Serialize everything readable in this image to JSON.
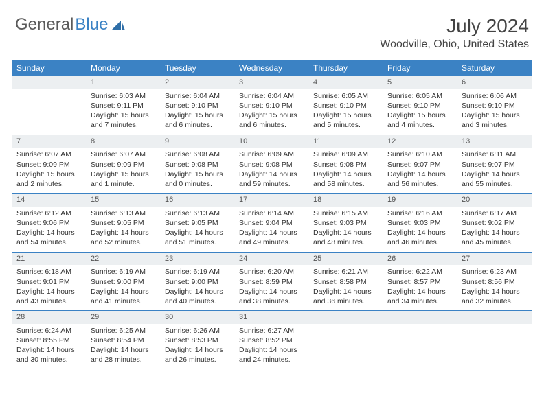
{
  "brand": {
    "general": "General",
    "blue": "Blue"
  },
  "header": {
    "month_year": "July 2024",
    "location": "Woodville, Ohio, United States"
  },
  "day_headers": [
    "Sunday",
    "Monday",
    "Tuesday",
    "Wednesday",
    "Thursday",
    "Friday",
    "Saturday"
  ],
  "colors": {
    "accent": "#3b82c4",
    "daynum_bg": "#eceff1"
  },
  "weeks": [
    [
      null,
      {
        "n": "1",
        "sr": "Sunrise: 6:03 AM",
        "ss": "Sunset: 9:11 PM",
        "d1": "Daylight: 15 hours",
        "d2": "and 7 minutes."
      },
      {
        "n": "2",
        "sr": "Sunrise: 6:04 AM",
        "ss": "Sunset: 9:10 PM",
        "d1": "Daylight: 15 hours",
        "d2": "and 6 minutes."
      },
      {
        "n": "3",
        "sr": "Sunrise: 6:04 AM",
        "ss": "Sunset: 9:10 PM",
        "d1": "Daylight: 15 hours",
        "d2": "and 6 minutes."
      },
      {
        "n": "4",
        "sr": "Sunrise: 6:05 AM",
        "ss": "Sunset: 9:10 PM",
        "d1": "Daylight: 15 hours",
        "d2": "and 5 minutes."
      },
      {
        "n": "5",
        "sr": "Sunrise: 6:05 AM",
        "ss": "Sunset: 9:10 PM",
        "d1": "Daylight: 15 hours",
        "d2": "and 4 minutes."
      },
      {
        "n": "6",
        "sr": "Sunrise: 6:06 AM",
        "ss": "Sunset: 9:10 PM",
        "d1": "Daylight: 15 hours",
        "d2": "and 3 minutes."
      }
    ],
    [
      {
        "n": "7",
        "sr": "Sunrise: 6:07 AM",
        "ss": "Sunset: 9:09 PM",
        "d1": "Daylight: 15 hours",
        "d2": "and 2 minutes."
      },
      {
        "n": "8",
        "sr": "Sunrise: 6:07 AM",
        "ss": "Sunset: 9:09 PM",
        "d1": "Daylight: 15 hours",
        "d2": "and 1 minute."
      },
      {
        "n": "9",
        "sr": "Sunrise: 6:08 AM",
        "ss": "Sunset: 9:08 PM",
        "d1": "Daylight: 15 hours",
        "d2": "and 0 minutes."
      },
      {
        "n": "10",
        "sr": "Sunrise: 6:09 AM",
        "ss": "Sunset: 9:08 PM",
        "d1": "Daylight: 14 hours",
        "d2": "and 59 minutes."
      },
      {
        "n": "11",
        "sr": "Sunrise: 6:09 AM",
        "ss": "Sunset: 9:08 PM",
        "d1": "Daylight: 14 hours",
        "d2": "and 58 minutes."
      },
      {
        "n": "12",
        "sr": "Sunrise: 6:10 AM",
        "ss": "Sunset: 9:07 PM",
        "d1": "Daylight: 14 hours",
        "d2": "and 56 minutes."
      },
      {
        "n": "13",
        "sr": "Sunrise: 6:11 AM",
        "ss": "Sunset: 9:07 PM",
        "d1": "Daylight: 14 hours",
        "d2": "and 55 minutes."
      }
    ],
    [
      {
        "n": "14",
        "sr": "Sunrise: 6:12 AM",
        "ss": "Sunset: 9:06 PM",
        "d1": "Daylight: 14 hours",
        "d2": "and 54 minutes."
      },
      {
        "n": "15",
        "sr": "Sunrise: 6:13 AM",
        "ss": "Sunset: 9:05 PM",
        "d1": "Daylight: 14 hours",
        "d2": "and 52 minutes."
      },
      {
        "n": "16",
        "sr": "Sunrise: 6:13 AM",
        "ss": "Sunset: 9:05 PM",
        "d1": "Daylight: 14 hours",
        "d2": "and 51 minutes."
      },
      {
        "n": "17",
        "sr": "Sunrise: 6:14 AM",
        "ss": "Sunset: 9:04 PM",
        "d1": "Daylight: 14 hours",
        "d2": "and 49 minutes."
      },
      {
        "n": "18",
        "sr": "Sunrise: 6:15 AM",
        "ss": "Sunset: 9:03 PM",
        "d1": "Daylight: 14 hours",
        "d2": "and 48 minutes."
      },
      {
        "n": "19",
        "sr": "Sunrise: 6:16 AM",
        "ss": "Sunset: 9:03 PM",
        "d1": "Daylight: 14 hours",
        "d2": "and 46 minutes."
      },
      {
        "n": "20",
        "sr": "Sunrise: 6:17 AM",
        "ss": "Sunset: 9:02 PM",
        "d1": "Daylight: 14 hours",
        "d2": "and 45 minutes."
      }
    ],
    [
      {
        "n": "21",
        "sr": "Sunrise: 6:18 AM",
        "ss": "Sunset: 9:01 PM",
        "d1": "Daylight: 14 hours",
        "d2": "and 43 minutes."
      },
      {
        "n": "22",
        "sr": "Sunrise: 6:19 AM",
        "ss": "Sunset: 9:00 PM",
        "d1": "Daylight: 14 hours",
        "d2": "and 41 minutes."
      },
      {
        "n": "23",
        "sr": "Sunrise: 6:19 AM",
        "ss": "Sunset: 9:00 PM",
        "d1": "Daylight: 14 hours",
        "d2": "and 40 minutes."
      },
      {
        "n": "24",
        "sr": "Sunrise: 6:20 AM",
        "ss": "Sunset: 8:59 PM",
        "d1": "Daylight: 14 hours",
        "d2": "and 38 minutes."
      },
      {
        "n": "25",
        "sr": "Sunrise: 6:21 AM",
        "ss": "Sunset: 8:58 PM",
        "d1": "Daylight: 14 hours",
        "d2": "and 36 minutes."
      },
      {
        "n": "26",
        "sr": "Sunrise: 6:22 AM",
        "ss": "Sunset: 8:57 PM",
        "d1": "Daylight: 14 hours",
        "d2": "and 34 minutes."
      },
      {
        "n": "27",
        "sr": "Sunrise: 6:23 AM",
        "ss": "Sunset: 8:56 PM",
        "d1": "Daylight: 14 hours",
        "d2": "and 32 minutes."
      }
    ],
    [
      {
        "n": "28",
        "sr": "Sunrise: 6:24 AM",
        "ss": "Sunset: 8:55 PM",
        "d1": "Daylight: 14 hours",
        "d2": "and 30 minutes."
      },
      {
        "n": "29",
        "sr": "Sunrise: 6:25 AM",
        "ss": "Sunset: 8:54 PM",
        "d1": "Daylight: 14 hours",
        "d2": "and 28 minutes."
      },
      {
        "n": "30",
        "sr": "Sunrise: 6:26 AM",
        "ss": "Sunset: 8:53 PM",
        "d1": "Daylight: 14 hours",
        "d2": "and 26 minutes."
      },
      {
        "n": "31",
        "sr": "Sunrise: 6:27 AM",
        "ss": "Sunset: 8:52 PM",
        "d1": "Daylight: 14 hours",
        "d2": "and 24 minutes."
      },
      null,
      null,
      null
    ]
  ]
}
